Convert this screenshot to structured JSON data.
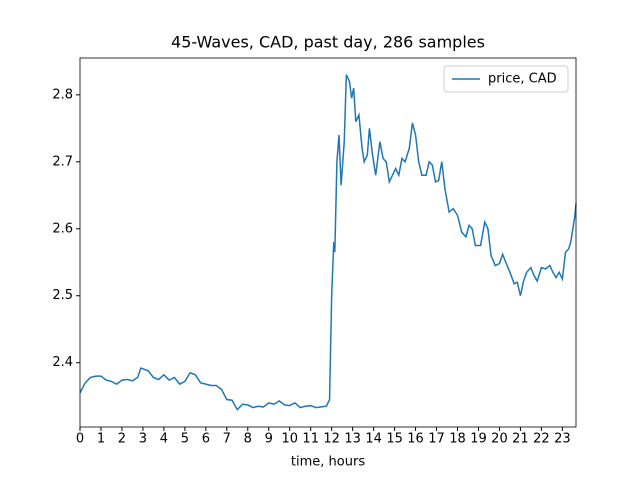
{
  "chart_data": {
    "type": "line",
    "title": "45-Waves, CAD, past day, 286 samples",
    "xlabel": "time, hours",
    "x": [
      0,
      0.25,
      0.5,
      0.75,
      1.0,
      1.25,
      1.5,
      1.75,
      2.0,
      2.25,
      2.5,
      2.75,
      2.9,
      3.25,
      3.5,
      3.75,
      4.0,
      4.25,
      4.5,
      4.75,
      5.0,
      5.25,
      5.5,
      5.75,
      6.0,
      6.25,
      6.5,
      6.75,
      7.0,
      7.25,
      7.5,
      7.75,
      8.0,
      8.25,
      8.5,
      8.75,
      9.0,
      9.25,
      9.5,
      9.75,
      10.0,
      10.25,
      10.5,
      10.75,
      11.0,
      11.25,
      11.5,
      11.75,
      11.9,
      12.0,
      12.1,
      12.15,
      12.25,
      12.35,
      12.45,
      12.6,
      12.7,
      12.85,
      12.95,
      13.05,
      13.15,
      13.3,
      13.45,
      13.55,
      13.7,
      13.8,
      13.95,
      14.1,
      14.3,
      14.45,
      14.6,
      14.75,
      14.9,
      15.05,
      15.2,
      15.35,
      15.5,
      15.7,
      15.85,
      16.0,
      16.15,
      16.3,
      16.5,
      16.65,
      16.8,
      16.95,
      17.1,
      17.25,
      17.4,
      17.6,
      17.8,
      18.0,
      18.2,
      18.4,
      18.55,
      18.7,
      18.85,
      19.1,
      19.3,
      19.45,
      19.6,
      19.8,
      20.0,
      20.15,
      20.3,
      20.5,
      20.7,
      20.85,
      21.0,
      21.15,
      21.3,
      21.5,
      21.65,
      21.8,
      22.0,
      22.2,
      22.4,
      22.55,
      22.7,
      22.85,
      23.0,
      23.15,
      23.3,
      23.4,
      23.5,
      23.6,
      23.65
    ],
    "series": [
      {
        "name": "price, CAD",
        "color": "#1f77b4",
        "values": [
          2.355,
          2.37,
          2.378,
          2.38,
          2.38,
          2.374,
          2.372,
          2.368,
          2.374,
          2.375,
          2.373,
          2.378,
          2.392,
          2.388,
          2.378,
          2.375,
          2.382,
          2.374,
          2.378,
          2.368,
          2.372,
          2.385,
          2.382,
          2.37,
          2.368,
          2.366,
          2.366,
          2.36,
          2.345,
          2.344,
          2.33,
          2.338,
          2.337,
          2.333,
          2.335,
          2.334,
          2.34,
          2.338,
          2.343,
          2.337,
          2.336,
          2.34,
          2.333,
          2.335,
          2.336,
          2.333,
          2.334,
          2.335,
          2.345,
          2.5,
          2.58,
          2.565,
          2.7,
          2.74,
          2.665,
          2.73,
          2.83,
          2.82,
          2.795,
          2.81,
          2.76,
          2.77,
          2.72,
          2.7,
          2.71,
          2.75,
          2.71,
          2.68,
          2.73,
          2.705,
          2.7,
          2.67,
          2.68,
          2.69,
          2.68,
          2.705,
          2.7,
          2.72,
          2.758,
          2.74,
          2.7,
          2.68,
          2.68,
          2.7,
          2.695,
          2.67,
          2.672,
          2.7,
          2.66,
          2.625,
          2.63,
          2.62,
          2.595,
          2.588,
          2.605,
          2.6,
          2.575,
          2.575,
          2.61,
          2.6,
          2.56,
          2.545,
          2.548,
          2.562,
          2.55,
          2.535,
          2.518,
          2.52,
          2.5,
          2.522,
          2.535,
          2.542,
          2.53,
          2.522,
          2.542,
          2.54,
          2.545,
          2.535,
          2.527,
          2.535,
          2.525,
          2.565,
          2.57,
          2.58,
          2.6,
          2.62,
          2.638
        ]
      }
    ],
    "xlim": [
      0,
      23.65
    ],
    "xticks": [
      0,
      1,
      2,
      3,
      4,
      5,
      6,
      7,
      8,
      9,
      10,
      11,
      12,
      13,
      14,
      15,
      16,
      17,
      18,
      19,
      20,
      21,
      22,
      23
    ],
    "ylim": [
      2.304,
      2.855
    ],
    "yticks": [
      2.4,
      2.5,
      2.6,
      2.7,
      2.8
    ],
    "grid": false,
    "legend": "upper right"
  }
}
